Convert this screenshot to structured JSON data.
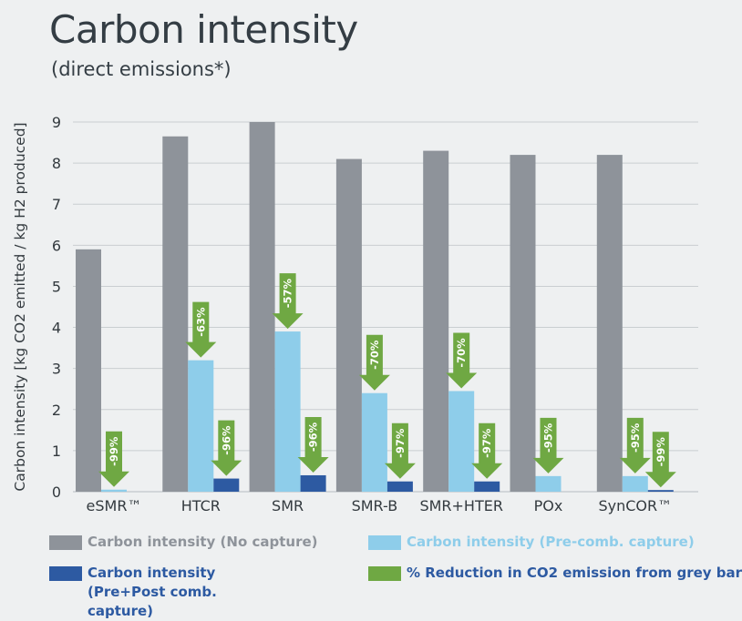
{
  "title": "Carbon intensity",
  "subtitle": "(direct emissions*)",
  "colors": {
    "grey": "#8e939a",
    "light_blue": "#8ecdea",
    "dark_blue": "#2d5aa2",
    "green": "#6fa843",
    "grid": "#c9ced1"
  },
  "chart_data": {
    "type": "bar",
    "ylabel": "Carbon intensity [kg CO2 emitted / kg H2 produced]",
    "ylim": [
      0,
      9
    ],
    "yticks": [
      "0",
      "1",
      "2",
      "3",
      "4",
      "5",
      "6",
      "7",
      "8",
      "9"
    ],
    "grid": true,
    "categories": [
      "eSMR™",
      "HTCR",
      "SMR",
      "SMR-B",
      "SMR+HTER",
      "POx",
      "SynCOR™"
    ],
    "series": [
      {
        "name": "Carbon intensity (No capture)",
        "values": [
          5.9,
          8.65,
          9.0,
          8.1,
          8.3,
          8.2,
          8.2
        ]
      },
      {
        "name": "Carbon intensity (Pre-comb. capture)",
        "values": [
          0.05,
          3.2,
          3.9,
          2.4,
          2.45,
          0.38,
          0.38
        ]
      },
      {
        "name": "Carbon intensity (Pre+Post comb. capture)",
        "values": [
          0,
          0.32,
          0.4,
          0.25,
          0.25,
          0,
          0.04
        ]
      }
    ],
    "reductions": [
      {
        "category": 0,
        "series": 1,
        "label": "-99%"
      },
      {
        "category": 1,
        "series": 1,
        "label": "-63%"
      },
      {
        "category": 1,
        "series": 2,
        "label": "-96%"
      },
      {
        "category": 2,
        "series": 1,
        "label": "-57%"
      },
      {
        "category": 2,
        "series": 2,
        "label": "-96%"
      },
      {
        "category": 3,
        "series": 1,
        "label": "-70%"
      },
      {
        "category": 3,
        "series": 2,
        "label": "-97%"
      },
      {
        "category": 4,
        "series": 1,
        "label": "-70%"
      },
      {
        "category": 4,
        "series": 2,
        "label": "-97%"
      },
      {
        "category": 5,
        "series": 1,
        "label": "-95%"
      },
      {
        "category": 6,
        "series": 1,
        "label": "-95%"
      },
      {
        "category": 6,
        "series": 2,
        "label": "-99%"
      }
    ],
    "legend": {
      "placement": "bottom",
      "items": [
        {
          "text": "Carbon intensity (No capture)",
          "color": "#8e939a",
          "text_color": "#8e939a"
        },
        {
          "text": "Carbon intensity (Pre-comb. capture)",
          "color": "#8ecdea",
          "text_color": "#8ecdea"
        },
        {
          "text": "Carbon intensity (Pre+Post comb. capture)",
          "color": "#2d5aa2",
          "text_color": "#2d5aa2"
        },
        {
          "text": "% Reduction in CO2 emission from grey bar",
          "color": "#6fa843",
          "text_color": "#2d5aa2"
        }
      ]
    }
  }
}
